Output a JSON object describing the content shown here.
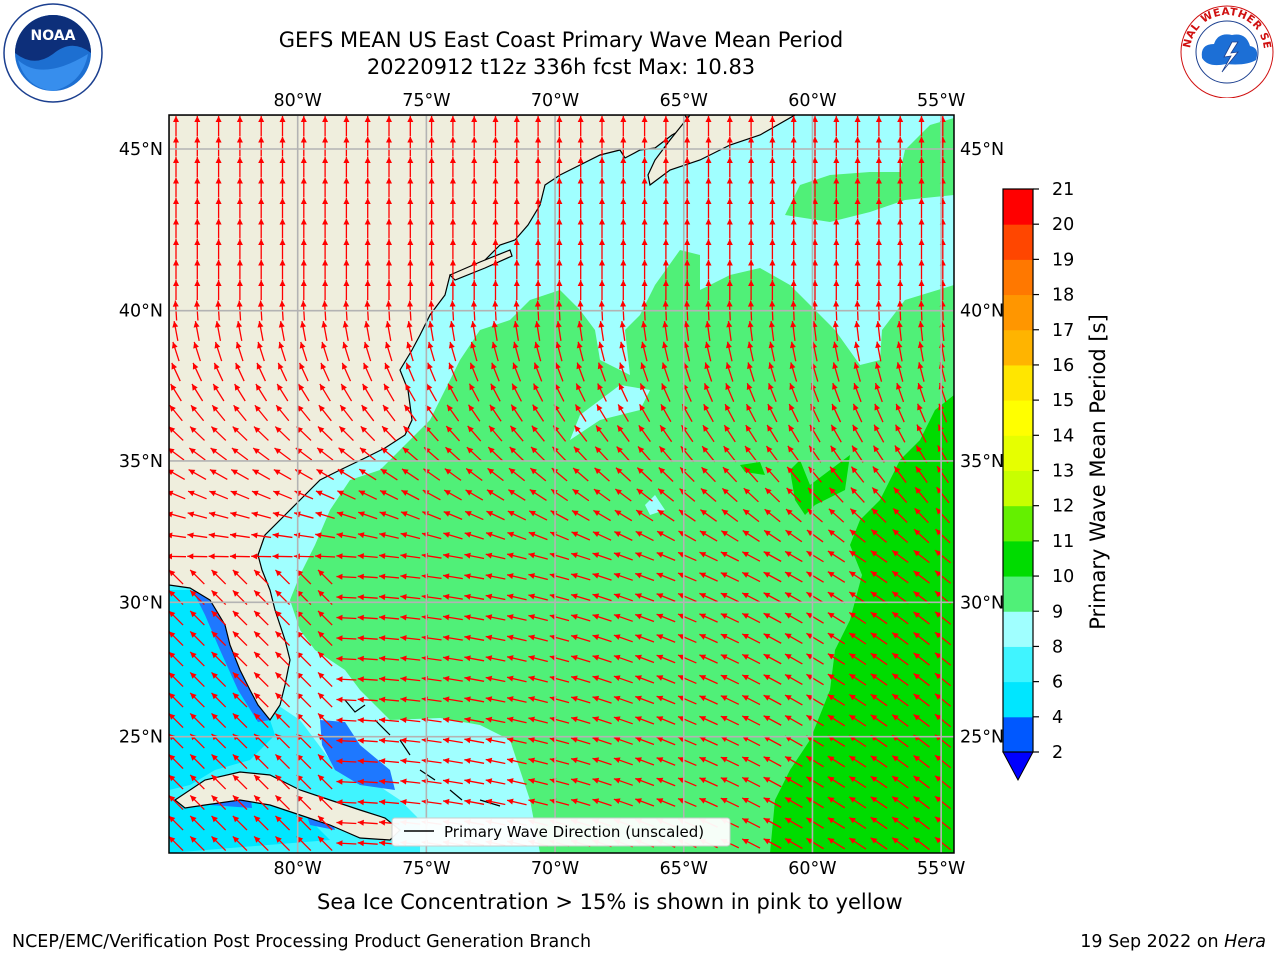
{
  "title_line1": "GEFS MEAN US East Coast Primary Wave Mean Period",
  "title_line2": "20220912 t12z 336h fcst   Max: 10.83",
  "subtitle": "Sea Ice Concentration > 15% is shown in pink to yellow",
  "footer_left": "NCEP/EMC/Verification Post Processing Product Generation Branch",
  "footer_date": "19 Sep 2022 on ",
  "footer_host": "Hera",
  "legend_label": "Primary Wave Direction (unscaled)",
  "colorbar_label": "Primary Wave Mean Period [s]",
  "colorbar_ticks": [
    "2",
    "4",
    "6",
    "8",
    "9",
    "10",
    "11",
    "12",
    "13",
    "14",
    "15",
    "16",
    "17",
    "18",
    "19",
    "20",
    "21"
  ],
  "colorbar_colors": [
    "#0058ff",
    "#00e6ff",
    "#40f4ff",
    "#a0ffff",
    "#50f078",
    "#00dc00",
    "#64f000",
    "#c8ff00",
    "#e6ff00",
    "#ffff00",
    "#ffe600",
    "#ffb400",
    "#ff9600",
    "#ff7800",
    "#ff4600",
    "#ff0000"
  ],
  "colorbar_extend_color": "#0000ff",
  "lon_labels": [
    "80°W",
    "75°W",
    "70°W",
    "65°W",
    "60°W",
    "55°W"
  ],
  "lat_labels": [
    "45°N",
    "40°N",
    "35°N",
    "30°N",
    "25°N"
  ],
  "lon_values": [
    -80,
    -75,
    -70,
    -65,
    -60,
    -55
  ],
  "lat_values": [
    45,
    40,
    35,
    30,
    25
  ],
  "map_extent": {
    "lon_min": -85,
    "lon_max": -54.5,
    "lat_min": 20.5,
    "lat_max": 46
  },
  "land_color": "#efeedd",
  "arrow_color": "#ff0000",
  "logo_noaa_text": "NOAA",
  "logo_nws_text": "NATIONAL WEATHER SERVICE"
}
